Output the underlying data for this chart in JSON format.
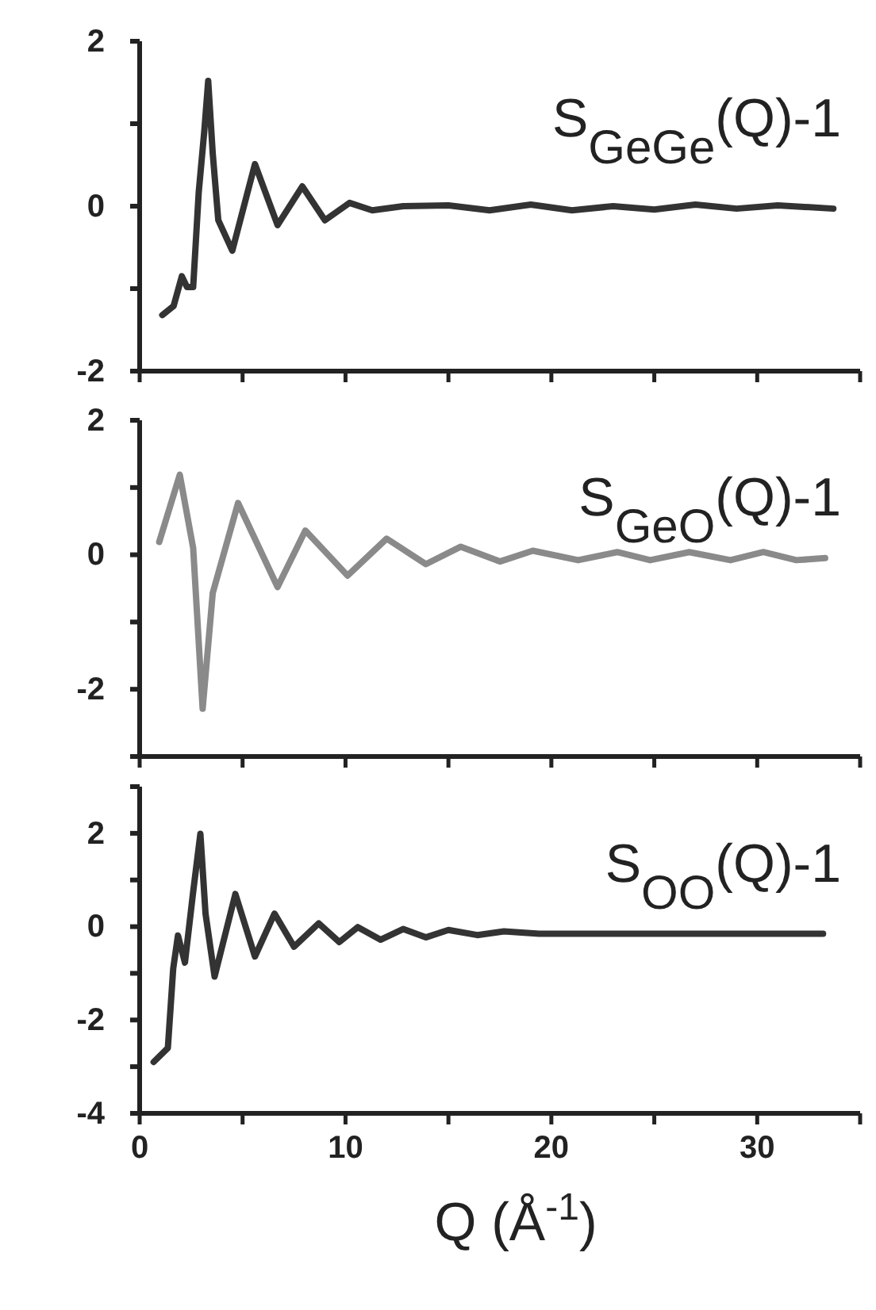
{
  "chart_data": [
    {
      "type": "line",
      "tick_labels": "y",
      "xlim": [
        0,
        35
      ],
      "ylim": [
        -2,
        2
      ],
      "xticks": [
        0,
        {
          "value": 5,
          "label": null
        },
        10,
        {
          "value": 15,
          "label": null
        },
        20,
        {
          "value": 25,
          "label": null
        },
        30,
        {
          "value": 35,
          "label": null
        }
      ],
      "yticks": [
        -2,
        {
          "value": -1,
          "label": null
        },
        0,
        {
          "value": 1,
          "label": null
        },
        2
      ],
      "series": [
        {
          "name": "S$_{GeGe}$(Q)-1",
          "color": "#333333",
          "x": [
            1.1,
            1.65,
            2.05,
            2.3,
            2.6,
            2.87,
            3.14,
            3.33,
            3.55,
            3.82,
            4.5,
            5.6,
            6.7,
            7.9,
            9.0,
            10.2,
            11.3,
            12.8,
            15,
            17,
            19,
            21,
            23,
            25,
            27,
            29,
            31,
            33.7
          ],
          "values": [
            -1.32,
            -1.21,
            -0.85,
            -0.98,
            -0.98,
            0.17,
            0.91,
            1.52,
            0.64,
            -0.17,
            -0.54,
            0.51,
            -0.23,
            0.24,
            -0.17,
            0.04,
            -0.05,
            0.0,
            0.01,
            -0.05,
            0.02,
            -0.05,
            0.0,
            -0.04,
            0.02,
            -0.03,
            0.01,
            -0.03
          ]
        }
      ]
    },
    {
      "type": "line",
      "tick_labels": "y",
      "xlim": [
        0,
        35
      ],
      "ylim": [
        -3,
        2
      ],
      "xticks": [
        0,
        {
          "value": 5,
          "label": null
        },
        10,
        {
          "value": 15,
          "label": null
        },
        20,
        {
          "value": 25,
          "label": null
        },
        30,
        {
          "value": 35,
          "label": null
        }
      ],
      "yticks": [
        {
          "value": -3,
          "label": null
        },
        -2,
        {
          "value": -1,
          "label": null
        },
        0,
        {
          "value": 1,
          "label": null
        },
        2
      ],
      "series": [
        {
          "name": "S$_{GeO}$(Q)-1",
          "color": "#8a8a8a",
          "x": [
            0.95,
            1.95,
            2.6,
            3.06,
            3.55,
            4.78,
            6.7,
            8.05,
            10.1,
            12.0,
            13.9,
            15.6,
            17.5,
            19.1,
            21.3,
            23.2,
            24.8,
            26.7,
            28.7,
            30.3,
            31.9,
            33.3
          ],
          "values": [
            0.19,
            1.19,
            0.1,
            -2.29,
            -0.57,
            0.77,
            -0.48,
            0.36,
            -0.31,
            0.24,
            -0.14,
            0.12,
            -0.1,
            0.06,
            -0.08,
            0.04,
            -0.08,
            0.04,
            -0.08,
            0.04,
            -0.08,
            -0.05
          ]
        }
      ]
    },
    {
      "type": "line",
      "xlabel": "Q (Å$^{-1}$)",
      "xlim": [
        0,
        35
      ],
      "ylim": [
        -4,
        3
      ],
      "xticks": [
        0,
        {
          "value": 5,
          "label": null
        },
        10,
        {
          "value": 15,
          "label": null
        },
        20,
        {
          "value": 25,
          "label": null
        },
        30,
        {
          "value": 35,
          "label": null
        }
      ],
      "yticks": [
        -4,
        {
          "value": -3,
          "label": null
        },
        -2,
        {
          "value": -1,
          "label": null
        },
        0,
        {
          "value": 1,
          "label": null
        },
        2,
        {
          "value": 3,
          "label": null
        }
      ],
      "series": [
        {
          "name": "S$_{OO}$(Q)-1",
          "color": "#333333",
          "x": [
            0.68,
            1.37,
            1.63,
            1.86,
            2.2,
            2.6,
            2.95,
            3.2,
            3.64,
            4.65,
            5.6,
            6.55,
            7.5,
            8.7,
            9.7,
            10.6,
            11.7,
            12.8,
            13.9,
            15.0,
            16.4,
            17.7,
            19.4,
            33.2
          ],
          "values": [
            -2.9,
            -2.6,
            -0.9,
            -0.19,
            -0.77,
            0.75,
            1.99,
            0.28,
            -1.07,
            0.7,
            -0.64,
            0.28,
            -0.43,
            0.07,
            -0.33,
            -0.01,
            -0.28,
            -0.05,
            -0.23,
            -0.07,
            -0.18,
            -0.1,
            -0.15,
            -0.15
          ]
        }
      ]
    }
  ]
}
